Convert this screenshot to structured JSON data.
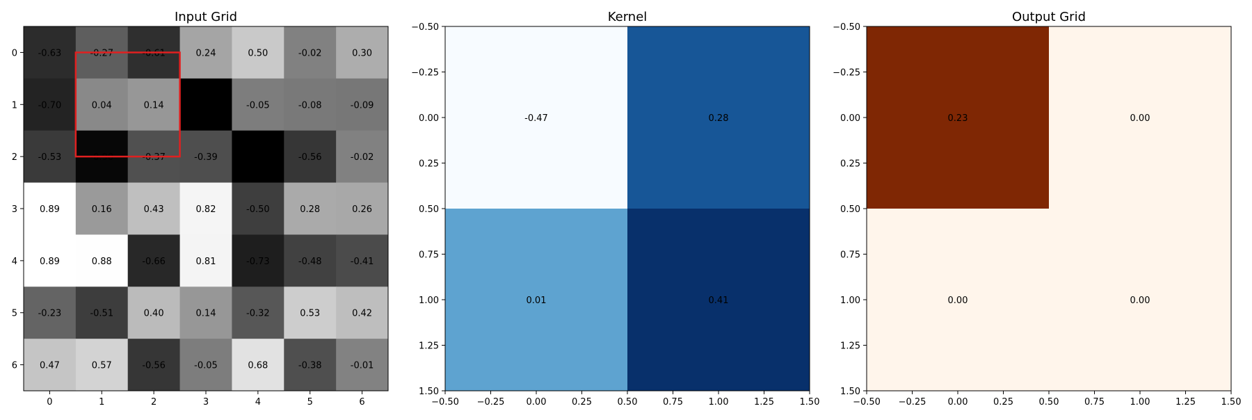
{
  "chart_data": [
    {
      "type": "heatmap",
      "title": "Input Grid",
      "colormap": "gray",
      "xticks": [
        "0",
        "1",
        "2",
        "3",
        "4",
        "5",
        "6"
      ],
      "yticks": [
        "0",
        "1",
        "2",
        "3",
        "4",
        "5",
        "6"
      ],
      "values": [
        [
          -0.63,
          -0.27,
          -0.61,
          0.24,
          0.5,
          -0.02,
          0.3
        ],
        [
          -0.7,
          0.04,
          0.14,
          -0.95,
          -0.05,
          -0.08,
          -0.09
        ],
        [
          -0.53,
          -0.9,
          -0.37,
          -0.39,
          -0.95,
          -0.56,
          -0.02
        ],
        [
          0.89,
          0.16,
          0.43,
          0.82,
          -0.5,
          0.28,
          0.26
        ],
        [
          0.89,
          0.88,
          -0.66,
          0.81,
          -0.73,
          -0.48,
          -0.41
        ],
        [
          -0.23,
          -0.51,
          0.4,
          0.14,
          -0.32,
          0.53,
          0.42
        ],
        [
          0.47,
          0.57,
          -0.56,
          -0.05,
          0.68,
          -0.38,
          -0.01
        ]
      ],
      "labels": [
        [
          "-0.63",
          "-0.27",
          "-0.61",
          "0.24",
          "0.50",
          "-0.02",
          "0.30"
        ],
        [
          "-0.70",
          "0.04",
          "0.14",
          "",
          "-0.05",
          "-0.08",
          "-0.09"
        ],
        [
          "-0.53",
          "-0.90",
          "-0.37",
          "-0.39",
          "",
          "-0.56",
          "-0.02"
        ],
        [
          "0.89",
          "0.16",
          "0.43",
          "0.82",
          "-0.50",
          "0.28",
          "0.26"
        ],
        [
          "0.89",
          "0.88",
          "-0.66",
          "0.81",
          "-0.73",
          "-0.48",
          "-0.41"
        ],
        [
          "-0.23",
          "-0.51",
          "0.40",
          "0.14",
          "-0.32",
          "0.53",
          "0.42"
        ],
        [
          "0.47",
          "0.57",
          "-0.56",
          "-0.05",
          "0.68",
          "-0.38",
          "-0.01"
        ]
      ],
      "highlight": {
        "x": [
          0.5,
          2.5
        ],
        "y": [
          0.0,
          2.0
        ],
        "color": "#e02020"
      }
    },
    {
      "type": "heatmap",
      "title": "Kernel",
      "colormap": "Blues",
      "xlim": [
        -0.5,
        1.5
      ],
      "ylim": [
        -0.5,
        1.5
      ],
      "xticks": [
        "−0.50",
        "−0.25",
        "0.00",
        "0.25",
        "0.50",
        "0.75",
        "1.00",
        "1.25",
        "1.50"
      ],
      "yticks": [
        "−0.50",
        "−0.25",
        "0.00",
        "0.25",
        "0.50",
        "0.75",
        "1.00",
        "1.25",
        "1.50"
      ],
      "values": [
        [
          -0.47,
          0.28
        ],
        [
          0.01,
          0.41
        ]
      ],
      "labels": [
        [
          "-0.47",
          "0.28"
        ],
        [
          "0.01",
          "0.41"
        ]
      ]
    },
    {
      "type": "heatmap",
      "title": "Output Grid",
      "colormap": "Oranges",
      "xlim": [
        -0.5,
        1.5
      ],
      "ylim": [
        -0.5,
        1.5
      ],
      "xticks": [
        "−0.50",
        "−0.25",
        "0.00",
        "0.25",
        "0.50",
        "0.75",
        "1.00",
        "1.25",
        "1.50"
      ],
      "yticks": [
        "−0.50",
        "−0.25",
        "0.00",
        "0.25",
        "0.50",
        "0.75",
        "1.00",
        "1.25",
        "1.50"
      ],
      "values": [
        [
          0.23,
          0.0
        ],
        [
          0.0,
          0.0
        ]
      ],
      "labels": [
        [
          "0.23",
          "0.00"
        ],
        [
          "0.00",
          "0.00"
        ]
      ]
    }
  ]
}
